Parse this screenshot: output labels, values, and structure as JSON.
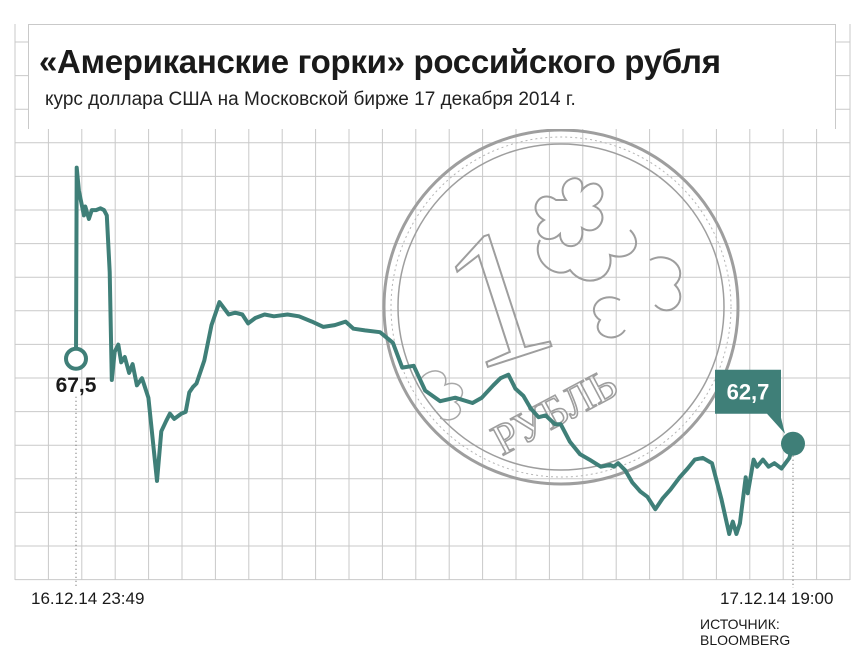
{
  "header": {
    "title": "«Американские горки» российского рубля",
    "subtitle": "курс доллара США на Московской бирже 17 декабря 2014 г."
  },
  "source": "ИСТОЧНИК: BLOOMBERG",
  "colors": {
    "line": "#3f7f78",
    "grid": "#c9c9c9",
    "coin": "#9e9e9e",
    "text": "#1a1a1a"
  },
  "coin_text": {
    "digit": "1",
    "word": "РУБЛЬ"
  },
  "chart_data": {
    "type": "line",
    "x_start_label": "16.12.14 23:49",
    "x_end_label": "17.12.14 19:00",
    "ylim": [
      55,
      80
    ],
    "grid": true,
    "start_point": {
      "x": 0.0,
      "y": 67.5,
      "label": "67,5"
    },
    "end_point": {
      "x": 1.0,
      "y": 62.7,
      "label": "62,7"
    },
    "x": [
      0.0,
      0.001,
      0.004,
      0.011,
      0.013,
      0.018,
      0.022,
      0.028,
      0.034,
      0.039,
      0.043,
      0.047,
      0.05,
      0.054,
      0.059,
      0.063,
      0.068,
      0.074,
      0.079,
      0.085,
      0.092,
      0.101,
      0.113,
      0.119,
      0.126,
      0.131,
      0.137,
      0.147,
      0.153,
      0.158,
      0.163,
      0.168,
      0.179,
      0.189,
      0.2,
      0.213,
      0.222,
      0.232,
      0.24,
      0.25,
      0.263,
      0.276,
      0.295,
      0.311,
      0.329,
      0.345,
      0.361,
      0.376,
      0.387,
      0.403,
      0.424,
      0.442,
      0.455,
      0.471,
      0.487,
      0.508,
      0.529,
      0.553,
      0.566,
      0.582,
      0.592,
      0.603,
      0.613,
      0.624,
      0.634,
      0.645,
      0.655,
      0.668,
      0.676,
      0.689,
      0.703,
      0.716,
      0.732,
      0.745,
      0.75,
      0.756,
      0.766,
      0.776,
      0.787,
      0.797,
      0.808,
      0.818,
      0.829,
      0.842,
      0.853,
      0.863,
      0.874,
      0.887,
      0.9,
      0.911,
      0.913,
      0.916,
      0.921,
      0.926,
      0.934,
      0.937,
      0.945,
      0.95,
      0.958,
      0.966,
      0.974,
      0.984,
      0.995,
      1.0
    ],
    "y": [
      67.5,
      78.3,
      77.0,
      75.6,
      76.1,
      75.4,
      75.9,
      75.9,
      76.0,
      75.9,
      75.6,
      72.4,
      66.3,
      67.9,
      68.3,
      67.3,
      67.6,
      66.7,
      67.2,
      66.0,
      66.4,
      65.3,
      60.6,
      63.4,
      64.0,
      64.4,
      64.1,
      64.4,
      64.5,
      65.6,
      65.9,
      66.1,
      67.4,
      69.4,
      70.7,
      70.0,
      70.1,
      70.0,
      69.5,
      69.8,
      70.0,
      69.9,
      70.0,
      69.9,
      69.6,
      69.3,
      69.4,
      69.6,
      69.2,
      69.1,
      69.0,
      68.4,
      67.0,
      67.1,
      65.7,
      65.1,
      65.3,
      65.0,
      65.3,
      66.0,
      66.4,
      66.6,
      65.8,
      65.4,
      64.7,
      64.2,
      64.3,
      63.8,
      63.8,
      62.8,
      62.1,
      61.8,
      61.4,
      61.5,
      61.4,
      61.6,
      61.2,
      60.5,
      60.0,
      59.7,
      59.0,
      59.6,
      60.1,
      60.8,
      61.3,
      61.8,
      61.9,
      61.6,
      59.6,
      57.6,
      57.9,
      58.3,
      57.6,
      58.2,
      60.8,
      59.9,
      61.8,
      61.4,
      61.8,
      61.4,
      61.6,
      61.3,
      61.9,
      62.7
    ]
  }
}
